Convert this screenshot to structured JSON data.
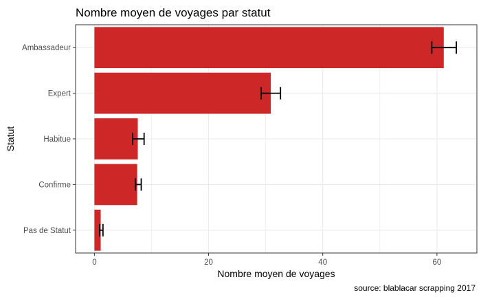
{
  "chart_data": {
    "type": "bar",
    "orientation": "horizontal",
    "title": "Nombre moyen de voyages par statut",
    "xlabel": "Nombre moyen de voyages",
    "ylabel": "Statut",
    "caption": "source: blablacar scrapping 2017",
    "categories": [
      "Ambassadeur",
      "Expert",
      "Habitue",
      "Confirme",
      "Pas de Statut"
    ],
    "values": [
      61.2,
      30.9,
      7.6,
      7.5,
      1.1
    ],
    "error_low": [
      59.1,
      29.2,
      6.7,
      7.2,
      0.9
    ],
    "error_high": [
      63.4,
      32.6,
      8.7,
      8.2,
      1.5
    ],
    "xlim": [
      -3.3,
      67.0
    ],
    "xticks": [
      0,
      20,
      40,
      60
    ],
    "grid": true,
    "legend": "none",
    "colors": {
      "bar": "#cd2728",
      "error_bar": "#000000",
      "grid": "#ebebeb",
      "panel_border": "#333333"
    }
  }
}
